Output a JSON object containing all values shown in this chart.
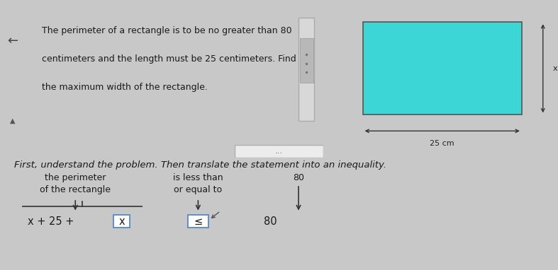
{
  "bg_top": "#f5f5f5",
  "bg_bottom": "#e8e8e8",
  "bg_overall": "#c8c8c8",
  "title_text_line1": "The perimeter of a rectangle is to be no greater than 80",
  "title_text_line2": "centimeters and the length must be 25 centimeters. Find",
  "title_text_line3": "the maximum width of the rectangle.",
  "title_fontsize": 9.0,
  "rect_fill": "#3dd6d6",
  "rect_edge": "#555555",
  "label_25cm": "25 cm",
  "label_xcm": "x cm",
  "intro_text": "First, understand the problem. Then translate the statement into an inequality.",
  "intro_fontsize": 9.5,
  "col1_line1": "the perimeter",
  "col1_line2": "of the rectangle",
  "col2_line1": "is less than",
  "col2_line2": "or equal to",
  "col3_val": "80",
  "col_fontsize": 9.0,
  "expr_text": "x + 25 + ",
  "expr_x": "x",
  "leq_sym": "≤",
  "expr_80": "80",
  "expr_fontsize": 10.5,
  "box_edge_color": "#5588cc",
  "arrow_color": "#333333",
  "divider_color": "#bbbbbb",
  "dots_text": "...",
  "back_arrow": "←",
  "up_triangle": "▲"
}
